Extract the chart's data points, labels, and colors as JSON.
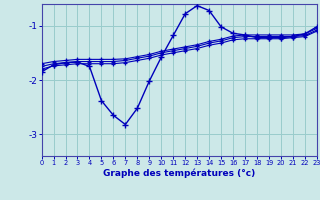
{
  "title": "Graphe des températures (°c)",
  "background_color": "#cce8e8",
  "line_color": "#0000bb",
  "grid_color": "#99cccc",
  "xlim": [
    0,
    23
  ],
  "ylim": [
    -3.4,
    -0.6
  ],
  "yticks": [
    -3,
    -2,
    -1
  ],
  "xticks": [
    0,
    1,
    2,
    3,
    4,
    5,
    6,
    7,
    8,
    9,
    10,
    11,
    12,
    13,
    14,
    15,
    16,
    17,
    18,
    19,
    20,
    21,
    22,
    23
  ],
  "flat1_x": [
    0,
    1,
    2,
    3,
    4,
    5,
    6,
    7,
    8,
    9,
    10,
    11,
    12,
    13,
    14,
    15,
    16,
    17,
    18,
    19,
    20,
    21,
    22,
    23
  ],
  "flat1_y": [
    -1.75,
    -1.7,
    -1.68,
    -1.66,
    -1.66,
    -1.66,
    -1.66,
    -1.64,
    -1.6,
    -1.56,
    -1.5,
    -1.46,
    -1.42,
    -1.38,
    -1.32,
    -1.28,
    -1.22,
    -1.2,
    -1.2,
    -1.2,
    -1.2,
    -1.2,
    -1.18,
    -1.08
  ],
  "flat2_x": [
    0,
    1,
    2,
    3,
    4,
    5,
    6,
    7,
    8,
    9,
    10,
    11,
    12,
    13,
    14,
    15,
    16,
    17,
    18,
    19,
    20,
    21,
    22,
    23
  ],
  "flat2_y": [
    -1.8,
    -1.74,
    -1.72,
    -1.7,
    -1.7,
    -1.7,
    -1.7,
    -1.68,
    -1.64,
    -1.6,
    -1.54,
    -1.5,
    -1.46,
    -1.42,
    -1.36,
    -1.32,
    -1.26,
    -1.24,
    -1.24,
    -1.24,
    -1.24,
    -1.22,
    -1.2,
    -1.1
  ],
  "flat3_x": [
    0,
    1,
    2,
    3,
    4,
    5,
    6,
    7,
    8,
    9,
    10,
    11,
    12,
    13,
    14,
    15,
    16,
    17,
    18,
    19,
    20,
    21,
    22,
    23
  ],
  "flat3_y": [
    -1.7,
    -1.66,
    -1.64,
    -1.62,
    -1.62,
    -1.62,
    -1.62,
    -1.61,
    -1.57,
    -1.53,
    -1.47,
    -1.43,
    -1.39,
    -1.35,
    -1.29,
    -1.25,
    -1.19,
    -1.17,
    -1.17,
    -1.17,
    -1.17,
    -1.17,
    -1.15,
    -1.05
  ],
  "main_x": [
    0,
    1,
    2,
    3,
    4,
    5,
    6,
    7,
    8,
    9,
    10,
    11,
    12,
    13,
    14,
    15,
    16,
    17,
    18,
    19,
    20,
    21,
    22,
    23
  ],
  "main_y": [
    -1.85,
    -1.72,
    -1.68,
    -1.67,
    -1.75,
    -2.38,
    -2.65,
    -2.82,
    -2.52,
    -2.02,
    -1.58,
    -1.18,
    -0.78,
    -0.63,
    -0.72,
    -1.02,
    -1.14,
    -1.17,
    -1.22,
    -1.22,
    -1.22,
    -1.2,
    -1.15,
    -1.02
  ],
  "figsize": [
    3.2,
    2.0
  ],
  "dpi": 100
}
